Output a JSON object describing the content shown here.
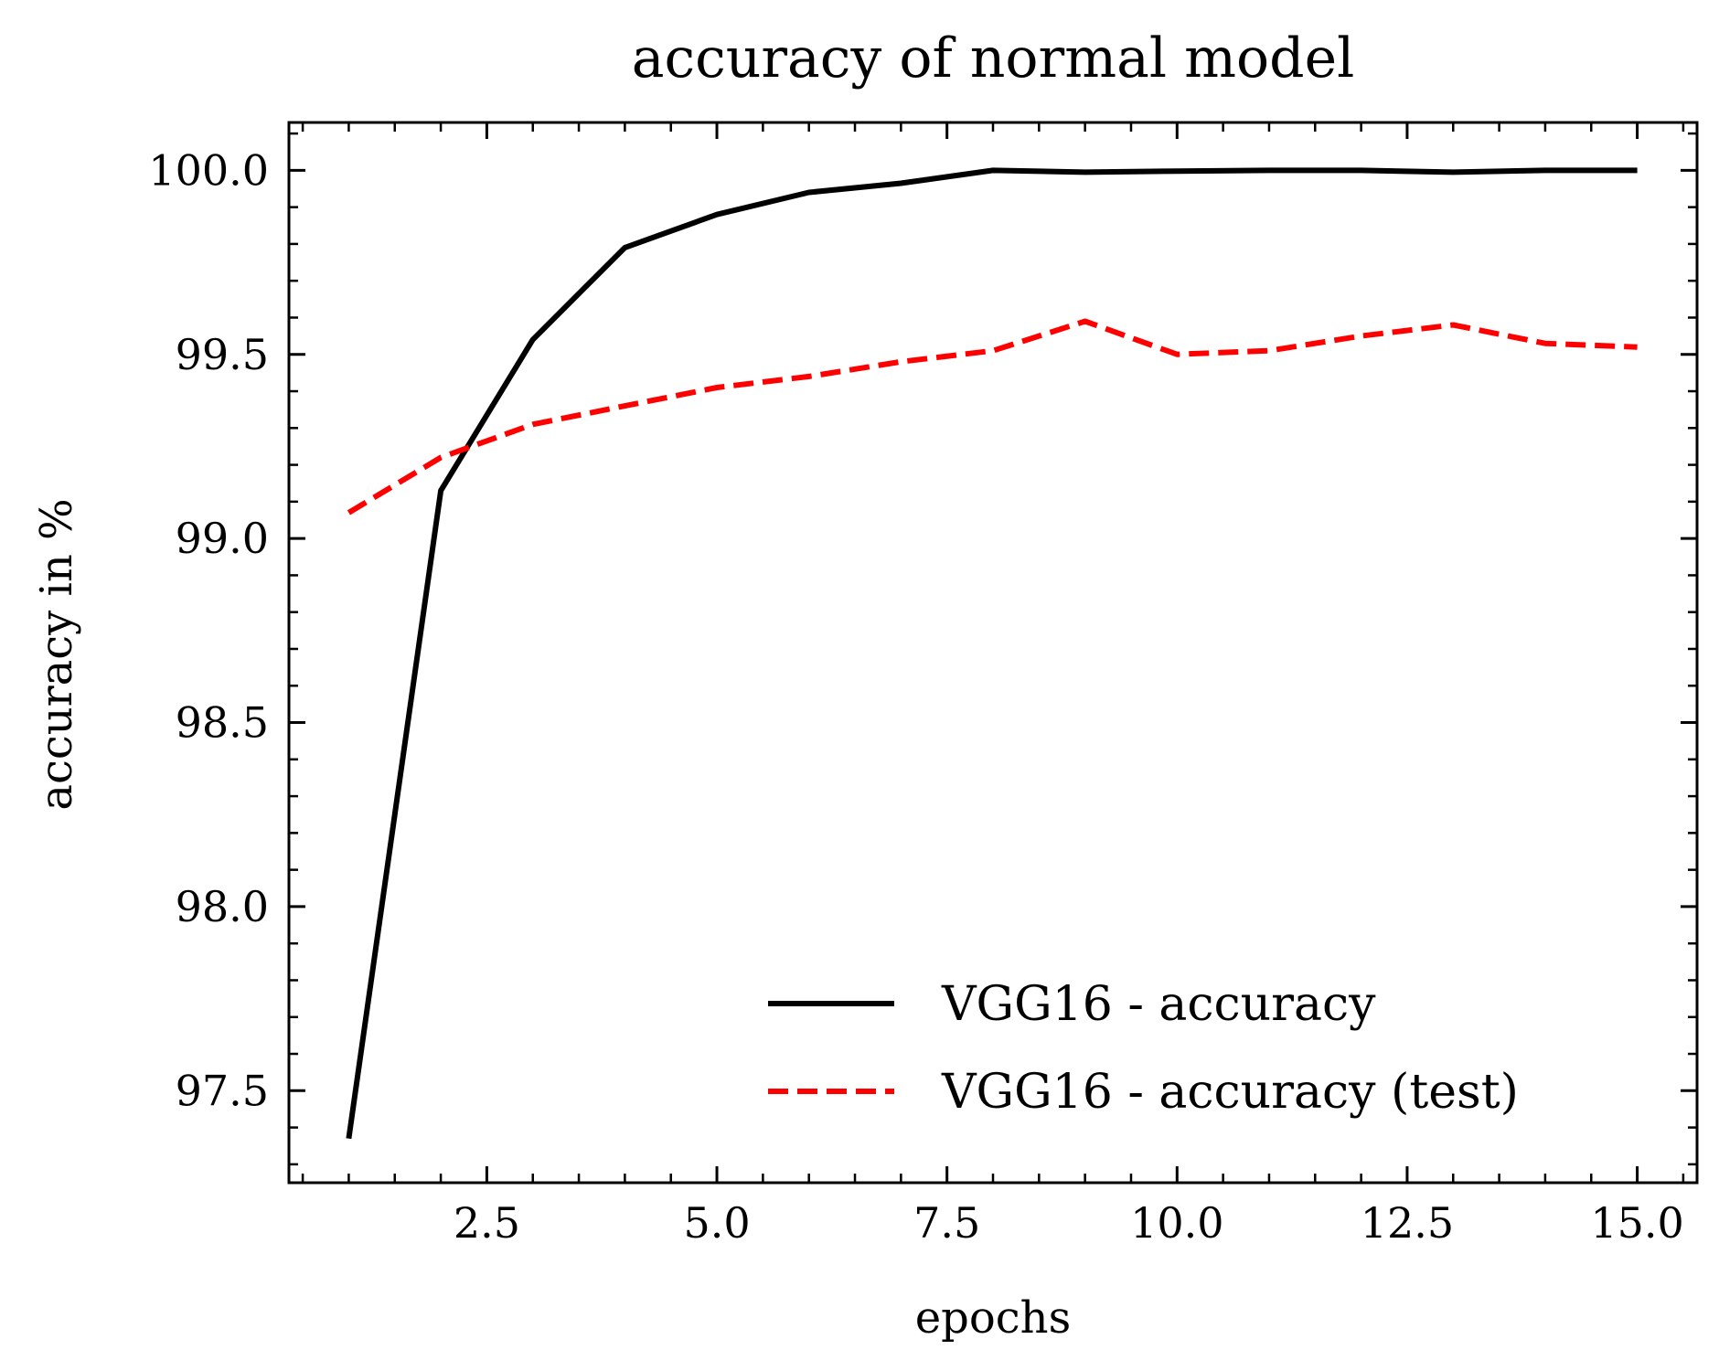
{
  "chart_data": {
    "type": "line",
    "title": "accuracy of normal model",
    "xlabel": "epochs",
    "ylabel": "accuracy in %",
    "xlim": [
      0.35,
      15.65
    ],
    "ylim": [
      97.25,
      100.13
    ],
    "xticks": [
      2.5,
      5.0,
      7.5,
      10.0,
      12.5,
      15.0
    ],
    "xtick_labels": [
      "2.5",
      "5.0",
      "7.5",
      "10.0",
      "12.5",
      "15.0"
    ],
    "yticks": [
      97.5,
      98.0,
      98.5,
      99.0,
      99.5,
      100.0
    ],
    "ytick_labels": [
      "97.5",
      "98.0",
      "98.5",
      "99.0",
      "99.5",
      "100.0"
    ],
    "grid": false,
    "legend_position": "bottom-right",
    "x": [
      1,
      2,
      3,
      4,
      5,
      6,
      7,
      8,
      9,
      10,
      11,
      12,
      13,
      14,
      15
    ],
    "series": [
      {
        "name": "VGG16 - accuracy",
        "color": "#000000",
        "style": "solid",
        "values": [
          97.37,
          99.13,
          99.54,
          99.79,
          99.88,
          99.94,
          99.965,
          100.0,
          99.995,
          99.998,
          100.0,
          100.0,
          99.995,
          100.0,
          100.0
        ]
      },
      {
        "name": "VGG16 - accuracy (test)",
        "color": "#ff0000",
        "style": "dashed",
        "values": [
          99.07,
          99.22,
          99.31,
          99.36,
          99.41,
          99.44,
          99.48,
          99.51,
          99.59,
          99.5,
          99.51,
          99.55,
          99.58,
          99.53,
          99.52
        ]
      }
    ]
  }
}
